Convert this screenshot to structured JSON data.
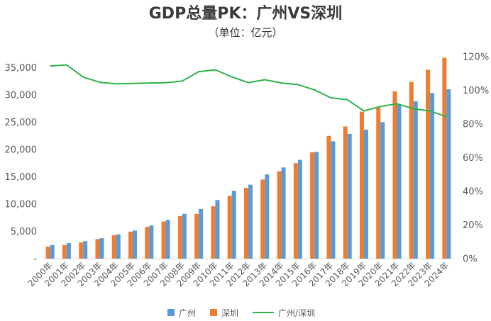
{
  "chart_data": {
    "type": "bar",
    "title": "GDP总量PK：广州VS深圳",
    "subtitle": "（单位：亿元）",
    "categories": [
      "2000年",
      "2001年",
      "2002年",
      "2003年",
      "2004年",
      "2005年",
      "2006年",
      "2007年",
      "2008年",
      "2009年",
      "2010年",
      "2011年",
      "2012年",
      "2013年",
      "2014年",
      "2015年",
      "2016年",
      "2017年",
      "2018年",
      "2019年",
      "2020年",
      "2021年",
      "2022年",
      "2023年",
      "2024年"
    ],
    "series": [
      {
        "name": "广州",
        "type": "bar",
        "axis": "left",
        "color": "#5B9BD5",
        "values": [
          2505,
          2857,
          3204,
          3758,
          4450,
          5154,
          6068,
          7109,
          8216,
          9113,
          10748,
          12423,
          13551,
          15420,
          16707,
          18100,
          19547,
          21503,
          22859,
          23629,
          25019,
          28232,
          28839,
          30355,
          31032
        ]
      },
      {
        "name": "深圳",
        "type": "bar",
        "axis": "left",
        "color": "#ED7D31",
        "values": [
          2187,
          2482,
          2969,
          3585,
          4282,
          4951,
          5814,
          6801,
          7787,
          8201,
          9582,
          11506,
          12950,
          14500,
          16002,
          17503,
          19493,
          22490,
          24222,
          26927,
          27670,
          30665,
          32388,
          34606,
          36802
        ]
      },
      {
        "name": "广州/深圳",
        "type": "line",
        "axis": "right",
        "color": "#2DB34A",
        "values": [
          114.5,
          115.1,
          107.9,
          104.8,
          103.9,
          104.1,
          104.4,
          104.5,
          105.5,
          111.1,
          112.2,
          108.0,
          104.6,
          106.3,
          104.4,
          103.4,
          100.3,
          95.6,
          94.4,
          87.8,
          90.4,
          92.1,
          89.0,
          87.7,
          84.3
        ]
      }
    ],
    "ylim": [
      0,
      37000
    ],
    "y2lim": [
      0,
      120
    ],
    "yticks": {
      "values": [
        0,
        5000,
        10000,
        15000,
        20000,
        25000,
        30000,
        35000
      ],
      "labels": [
        "-",
        "5,000",
        "10,000",
        "15,000",
        "20,000",
        "25,000",
        "30,000",
        "35,000"
      ]
    },
    "y2ticks": {
      "values": [
        0,
        20,
        40,
        60,
        80,
        100,
        120
      ],
      "labels": [
        "0%",
        "20%",
        "40%",
        "60%",
        "80%",
        "100%",
        "120%"
      ]
    },
    "grid": false,
    "legend_position": "bottom"
  }
}
